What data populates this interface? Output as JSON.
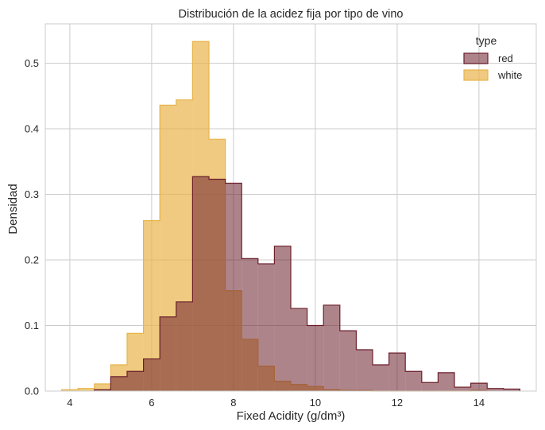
{
  "chart_data": {
    "type": "histogram",
    "title": "Distribución de la acidez fija por tipo de vino",
    "xlabel": "Fixed Acidity (g/dm³)",
    "ylabel": "Densidad",
    "xlim": [
      3.4,
      15.4
    ],
    "ylim": [
      0,
      0.56
    ],
    "x_ticks": [
      4,
      6,
      8,
      10,
      12,
      14
    ],
    "y_ticks": [
      0.0,
      0.1,
      0.2,
      0.3,
      0.4,
      0.5
    ],
    "grid": true,
    "legend": {
      "title": "type",
      "position": "top-right"
    },
    "series": [
      {
        "name": "white",
        "color": "#E8B44A",
        "fill_opacity": 0.7,
        "bin_edges": [
          3.8,
          4.2,
          4.6,
          5.0,
          5.4,
          5.8,
          6.2,
          6.6,
          7.0,
          7.4,
          7.8,
          8.2,
          8.6,
          9.0,
          9.4,
          9.8,
          10.2,
          10.6,
          11.0,
          11.4,
          11.8,
          12.2,
          12.6,
          13.0,
          13.4,
          13.8,
          14.2
        ],
        "densities": [
          0.002,
          0.004,
          0.011,
          0.04,
          0.088,
          0.26,
          0.436,
          0.444,
          0.533,
          0.384,
          0.153,
          0.079,
          0.038,
          0.015,
          0.01,
          0.007,
          0.002,
          0.001,
          0.001,
          0.0,
          0.0,
          0.0,
          0.0,
          0.0,
          0.0,
          0.001
        ]
      },
      {
        "name": "red",
        "color": "#6B1F2B",
        "fill_opacity": 0.55,
        "bin_edges": [
          4.6,
          5.0,
          5.4,
          5.8,
          6.2,
          6.6,
          7.0,
          7.4,
          7.8,
          8.2,
          8.6,
          9.0,
          9.4,
          9.8,
          10.2,
          10.6,
          11.0,
          11.4,
          11.8,
          12.2,
          12.6,
          13.0,
          13.4,
          13.8,
          14.2,
          14.6,
          15.0
        ],
        "densities": [
          0.002,
          0.022,
          0.03,
          0.049,
          0.113,
          0.136,
          0.327,
          0.323,
          0.317,
          0.202,
          0.194,
          0.221,
          0.126,
          0.1,
          0.131,
          0.092,
          0.063,
          0.04,
          0.058,
          0.03,
          0.013,
          0.028,
          0.006,
          0.012,
          0.004,
          0.003
        ]
      }
    ]
  }
}
